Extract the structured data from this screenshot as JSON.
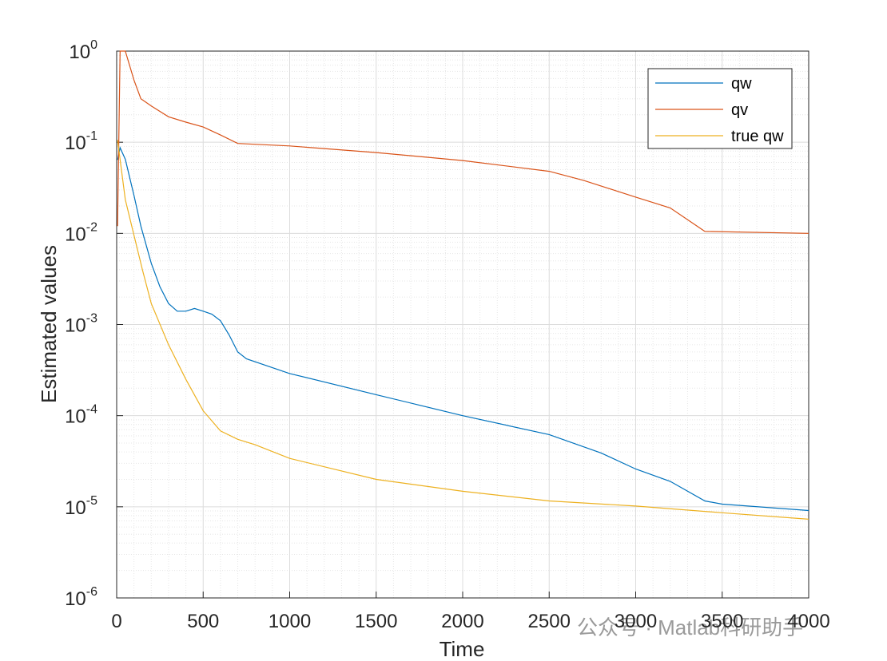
{
  "chart_data": {
    "type": "line",
    "xlabel": "Time",
    "ylabel": "Estimated values",
    "watermark": "公众号 · Matlab科研助手",
    "log_y": true,
    "grid": true,
    "minor_grid": true,
    "legend_loc": "northeast",
    "xlim": [
      0,
      4000
    ],
    "xticks": [
      0,
      500,
      1000,
      1500,
      2000,
      2500,
      3000,
      3500,
      4000
    ],
    "ylim": [
      1e-06,
      1
    ],
    "yticks": [
      {
        "value": 1e-06,
        "label": "10",
        "exponent": "-6"
      },
      {
        "value": 1e-05,
        "label": "10",
        "exponent": "-5"
      },
      {
        "value": 0.0001,
        "label": "10",
        "exponent": "-4"
      },
      {
        "value": 0.001,
        "label": "10",
        "exponent": "-3"
      },
      {
        "value": 0.01,
        "label": "10",
        "exponent": "-2"
      },
      {
        "value": 0.1,
        "label": "10",
        "exponent": "-1"
      },
      {
        "value": 1,
        "label": "10",
        "exponent": "0"
      }
    ],
    "series": [
      {
        "name": "qw",
        "color": "#0072BD",
        "x": [
          5,
          20,
          50,
          100,
          140,
          200,
          250,
          300,
          350,
          400,
          450,
          500,
          550,
          600,
          650,
          700,
          750,
          1000,
          1500,
          2000,
          2500,
          2800,
          3000,
          3200,
          3400,
          3500,
          4000
        ],
        "values": [
          0.064,
          0.087,
          0.065,
          0.026,
          0.012,
          0.0047,
          0.0026,
          0.0017,
          0.0014,
          0.0014,
          0.0015,
          0.0014,
          0.0013,
          0.0011,
          0.00077,
          0.0005,
          0.00042,
          0.00029,
          0.00017,
          0.0001,
          6.2e-05,
          3.9e-05,
          2.6e-05,
          1.9e-05,
          1.16e-05,
          1.07e-05,
          9.1e-06
        ]
      },
      {
        "name": "qv",
        "color": "#D95319",
        "x": [
          5,
          20,
          50,
          100,
          140,
          200,
          300,
          400,
          500,
          600,
          700,
          1000,
          1500,
          2000,
          2500,
          2700,
          3000,
          3200,
          3400,
          4000
        ],
        "values": [
          0.012,
          1,
          1,
          0.48,
          0.3,
          0.25,
          0.19,
          0.166,
          0.147,
          0.12,
          0.097,
          0.091,
          0.077,
          0.063,
          0.048,
          0.038,
          0.025,
          0.019,
          0.0105,
          0.01
        ]
      },
      {
        "name": "true qw",
        "color": "#EDB120",
        "x": [
          5,
          50,
          100,
          150,
          200,
          300,
          400,
          500,
          600,
          700,
          800,
          1000,
          1500,
          2000,
          2500,
          3000,
          3500,
          4000
        ],
        "values": [
          0.106,
          0.0235,
          0.0095,
          0.0039,
          0.0017,
          0.0006,
          0.00025,
          0.000113,
          6.8e-05,
          5.5e-05,
          4.8e-05,
          3.4e-05,
          2e-05,
          1.48e-05,
          1.16e-05,
          1.02e-05,
          8.6e-06,
          7.3e-06
        ]
      }
    ]
  }
}
